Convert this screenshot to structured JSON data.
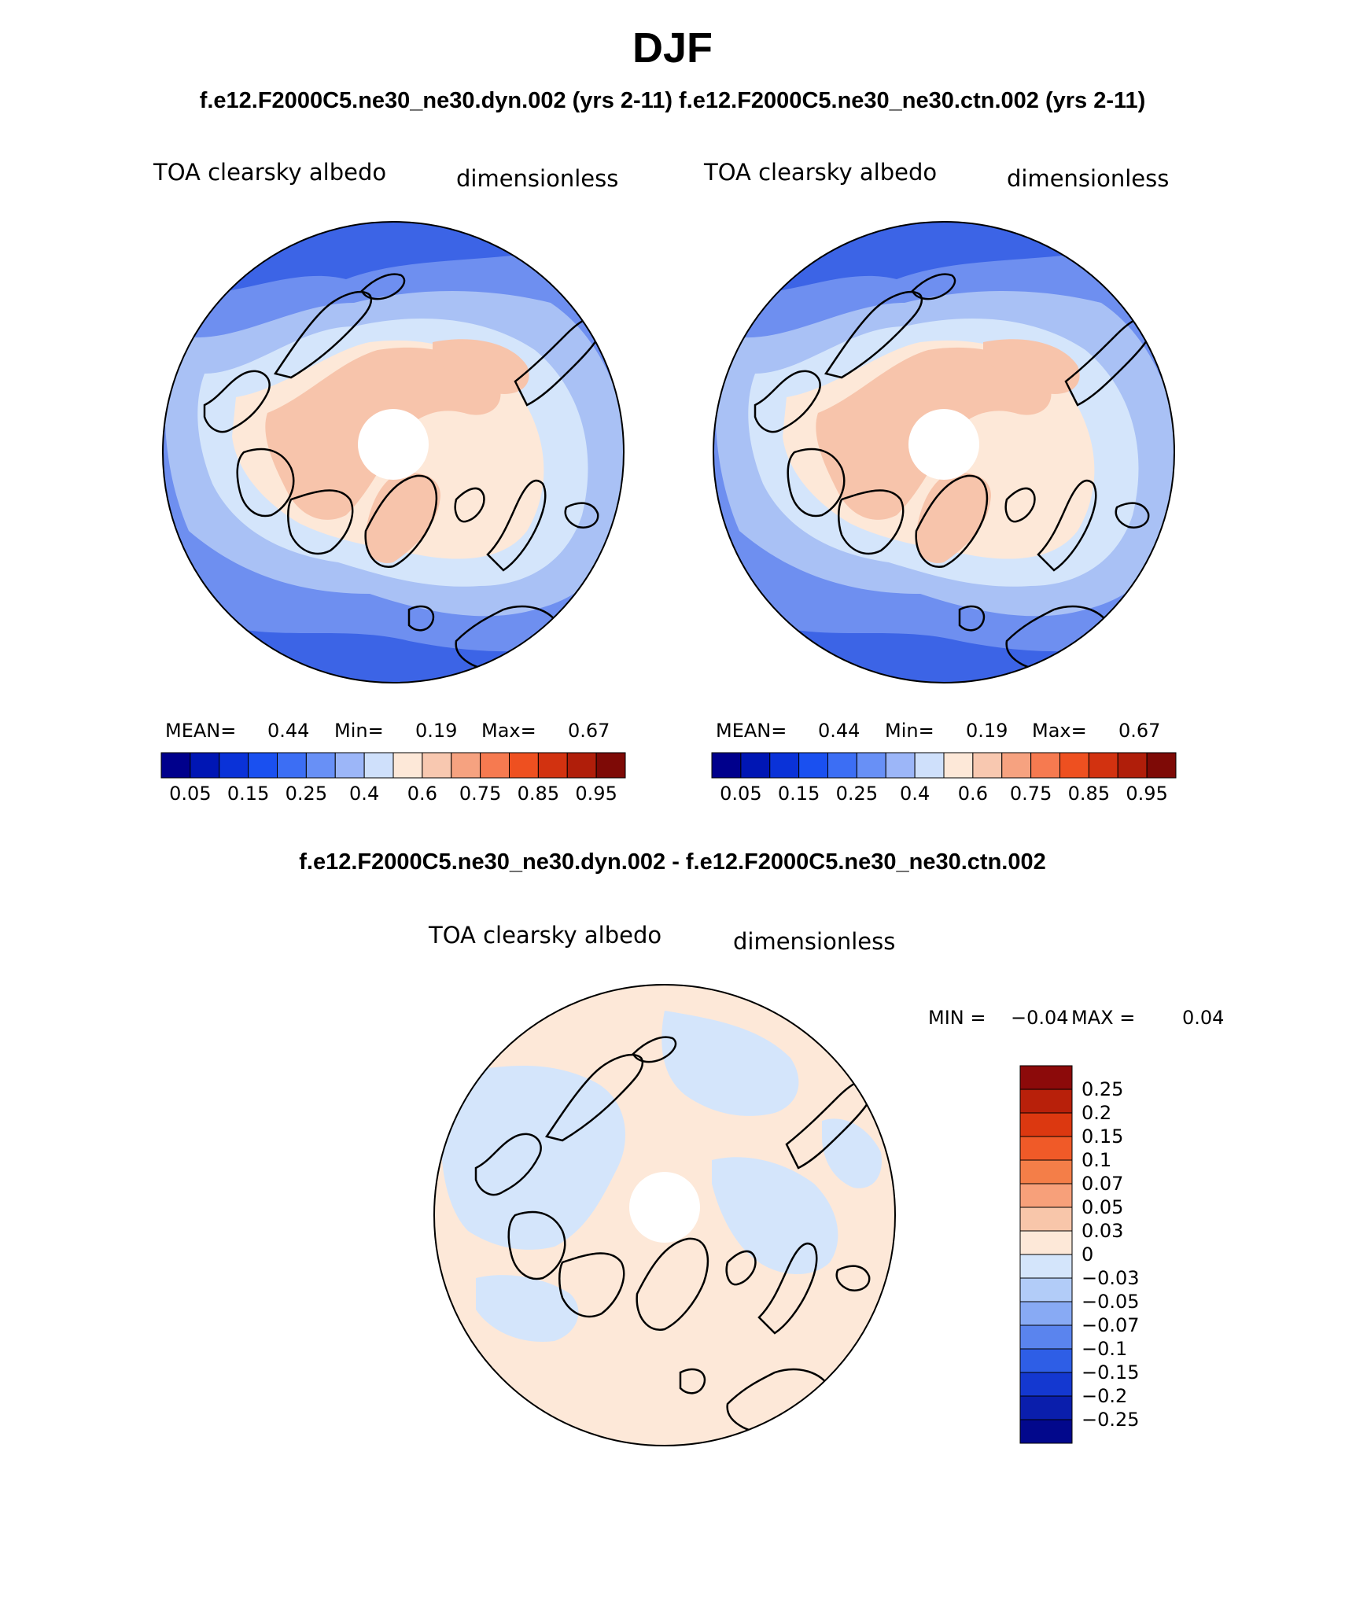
{
  "title": "DJF",
  "subtitle_top": "f.e12.F2000C5.ne30_ne30.dyn.002 (yrs 2-11)  f.e12.F2000C5.ne30_ne30.ctn.002 (yrs 2-11)",
  "subtitle_diff": "f.e12.F2000C5.ne30_ne30.dyn.002 - f.e12.F2000C5.ne30_ne30.ctn.002",
  "colors": {
    "deep_blue": "#3c64e6",
    "mid_blue": "#6e8ff0",
    "light_blue": "#a9c1f5",
    "pale_blue": "#d4e5fb",
    "cream": "#fde8d8",
    "peach": "#f7c4ab",
    "coastline": "#000000"
  },
  "panels": [
    {
      "variable": "TOA clearsky albedo",
      "units": "dimensionless",
      "stats": {
        "mean_label": "MEAN=",
        "mean": "0.44",
        "min_label": "Min=",
        "min": "0.19",
        "max_label": "Max=",
        "max": "0.67"
      }
    },
    {
      "variable": "TOA clearsky albedo",
      "units": "dimensionless",
      "stats": {
        "mean_label": "MEAN=",
        "mean": "0.44",
        "min_label": "Min=",
        "min": "0.19",
        "max_label": "Max=",
        "max": "0.67"
      }
    }
  ],
  "colorbar_h": {
    "colors": [
      "#00008c",
      "#0016b4",
      "#0a32d8",
      "#1a50f0",
      "#3c6ef4",
      "#6890f6",
      "#9cb6f8",
      "#cfe0fb",
      "#fde8d8",
      "#f8c8b0",
      "#f6a280",
      "#f67a50",
      "#ee5020",
      "#d23210",
      "#b01e0a",
      "#7e0a06"
    ],
    "labels": [
      "0.05",
      "0.15",
      "0.25",
      "0.4",
      "0.6",
      "0.75",
      "0.85",
      "0.95"
    ]
  },
  "diff_panel": {
    "variable": "TOA clearsky albedo",
    "units": "dimensionless",
    "min_label": "MIN =",
    "min": "−0.04",
    "max_label": "MAX =",
    "max": "0.04"
  },
  "colorbar_v": {
    "colors_top_to_bottom": [
      "#8c0a0a",
      "#b8200a",
      "#dc3810",
      "#f05a28",
      "#f47e48",
      "#f7a07a",
      "#f8c6aa",
      "#fde8d8",
      "#d4e5fb",
      "#b2ccf8",
      "#88aaf4",
      "#5a84ee",
      "#2e5ee6",
      "#1438d0",
      "#0a1eac",
      "#02088c"
    ],
    "labels": [
      "0.25",
      "0.2",
      "0.15",
      "0.1",
      "0.07",
      "0.05",
      "0.03",
      "0",
      "−0.03",
      "−0.05",
      "−0.07",
      "−0.1",
      "−0.15",
      "−0.2",
      "−0.25"
    ]
  }
}
